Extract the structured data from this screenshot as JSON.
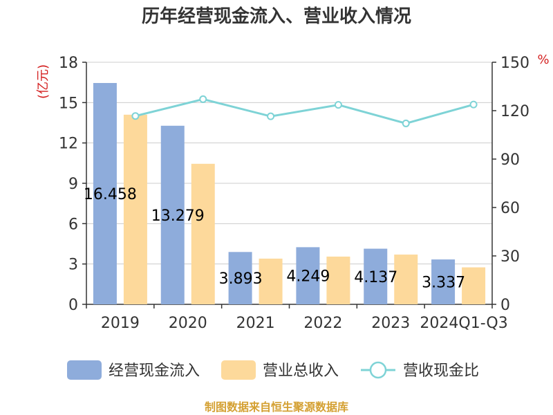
{
  "chart_data": {
    "type": "bar",
    "title": "历年经营现金流入、营业收入情况",
    "categories": [
      "2019",
      "2020",
      "2021",
      "2022",
      "2023",
      "2024Q1-Q3"
    ],
    "series": [
      {
        "name": "经营现金流入",
        "type": "bar",
        "axis": "left",
        "values": [
          16.458,
          13.279,
          3.893,
          4.249,
          4.137,
          3.337
        ],
        "labels": [
          "16.458",
          "13.279",
          "3.893",
          "4.249",
          "4.137",
          "3.337"
        ],
        "color": "#8eacdb"
      },
      {
        "name": "营业总收入",
        "type": "bar",
        "axis": "left",
        "values": [
          14.1,
          10.45,
          3.4,
          3.55,
          3.7,
          2.75
        ],
        "color": "#fdd99b"
      },
      {
        "name": "营收现金比",
        "type": "line",
        "axis": "right",
        "values": [
          116.7,
          127.1,
          116.5,
          123.6,
          112.1,
          123.8
        ],
        "color": "#7ed3d6"
      }
    ],
    "y_left": {
      "unit": "(亿元)",
      "ylim": [
        0,
        18
      ],
      "ticks": [
        "0",
        "3",
        "6",
        "9",
        "12",
        "15",
        "18"
      ]
    },
    "y_right": {
      "unit": "%",
      "ylim": [
        0,
        150
      ],
      "ticks": [
        "0",
        "30",
        "60",
        "90",
        "120",
        "150"
      ]
    },
    "grid": true,
    "legend_position": "bottom",
    "source": "制图数据来自恒生聚源数据库"
  }
}
